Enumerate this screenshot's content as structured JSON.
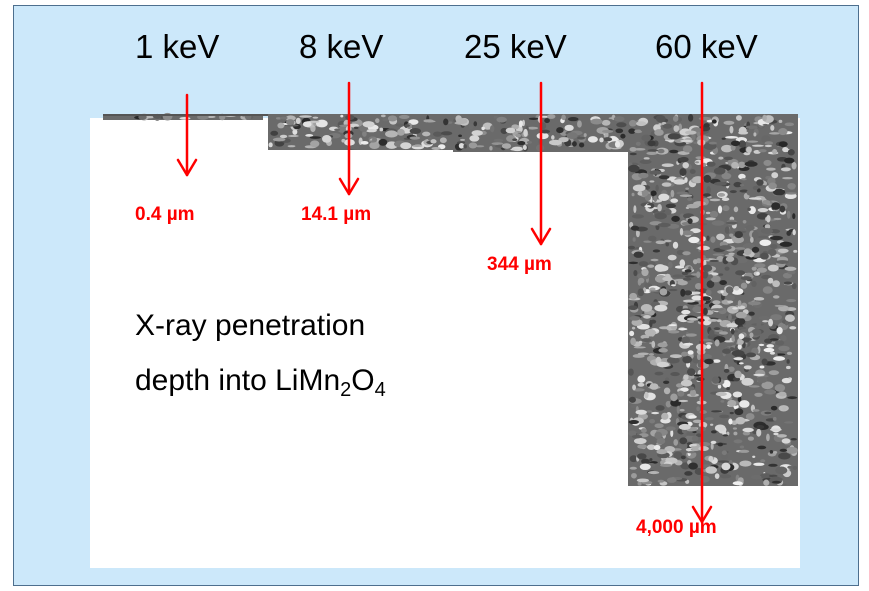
{
  "energy_labels": {
    "e1": "1 keV",
    "e2": "8 keV",
    "e3": "25 keV",
    "e4": "60 keV"
  },
  "depth_labels": {
    "d1": "0.4 µm",
    "d2": "14.1 µm",
    "d3": "344 µm",
    "d4": "4,000 µm"
  },
  "caption": {
    "line1": "X-ray penetration",
    "line2_prefix": "depth into LiMn",
    "subscript_mn": "2",
    "element_o": "O",
    "subscript_o": "4"
  },
  "colors": {
    "background": "#cce8fa",
    "border": "#4d6f8e",
    "arrow": "#ff0000",
    "depth_text": "#ff0000",
    "panel": "#ffffff"
  }
}
